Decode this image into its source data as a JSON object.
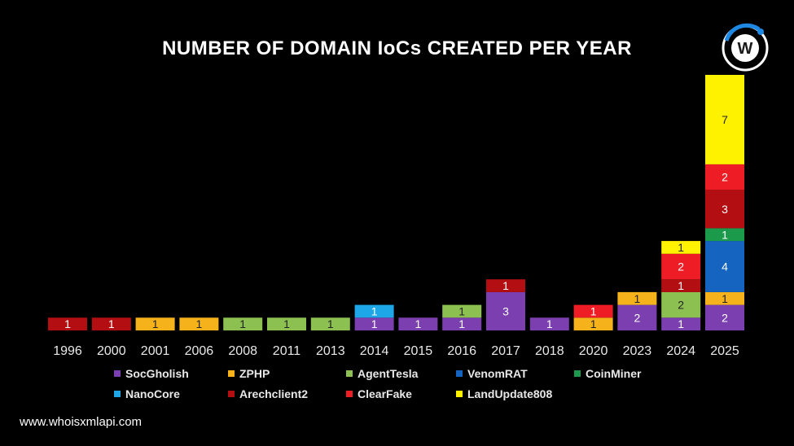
{
  "title": "NUMBER OF DOMAIN IoCs CREATED PER YEAR",
  "footer": "www.whoisxmlapi.com",
  "logo": {
    "icon": "whoisxmlapi-logo-icon",
    "letter": "W"
  },
  "chart_data": {
    "type": "bar",
    "stacked": true,
    "title": "NUMBER OF DOMAIN IoCs CREATED PER YEAR",
    "categories": [
      "1996",
      "2000",
      "2001",
      "2006",
      "2008",
      "2011",
      "2013",
      "2014",
      "2015",
      "2016",
      "2017",
      "2018",
      "2020",
      "2023",
      "2024",
      "2025"
    ],
    "series": [
      {
        "name": "SocGholish",
        "color": "#7b3fb0",
        "values": [
          0,
          0,
          0,
          0,
          0,
          0,
          0,
          1,
          1,
          1,
          3,
          1,
          0,
          2,
          1,
          2
        ]
      },
      {
        "name": "ZPHP",
        "color": "#f5b21a",
        "values": [
          0,
          0,
          1,
          1,
          0,
          0,
          0,
          0,
          0,
          0,
          0,
          0,
          1,
          1,
          0,
          1
        ]
      },
      {
        "name": "AgentTesla",
        "color": "#8cc152",
        "values": [
          0,
          0,
          0,
          0,
          1,
          1,
          1,
          0,
          0,
          1,
          0,
          0,
          0,
          0,
          2,
          0
        ]
      },
      {
        "name": "VenomRAT",
        "color": "#1565c0",
        "values": [
          0,
          0,
          0,
          0,
          0,
          0,
          0,
          0,
          0,
          0,
          0,
          0,
          0,
          0,
          0,
          4
        ]
      },
      {
        "name": "CoinMiner",
        "color": "#1a9a4a",
        "values": [
          0,
          0,
          0,
          0,
          0,
          0,
          0,
          0,
          0,
          0,
          0,
          0,
          0,
          0,
          0,
          1
        ]
      },
      {
        "name": "NanoCore",
        "color": "#1ea7e8",
        "values": [
          0,
          0,
          0,
          0,
          0,
          0,
          0,
          1,
          0,
          0,
          0,
          0,
          0,
          0,
          0,
          0
        ]
      },
      {
        "name": "Arechclient2",
        "color": "#b30f12",
        "values": [
          1,
          1,
          0,
          0,
          0,
          0,
          0,
          0,
          0,
          0,
          1,
          0,
          0,
          0,
          1,
          3
        ]
      },
      {
        "name": "ClearFake",
        "color": "#ee1c24",
        "values": [
          0,
          0,
          0,
          0,
          0,
          0,
          0,
          0,
          0,
          0,
          0,
          0,
          1,
          0,
          2,
          2
        ]
      },
      {
        "name": "LandUpdate808",
        "color": "#fff200",
        "values": [
          0,
          0,
          0,
          0,
          0,
          0,
          0,
          0,
          0,
          0,
          0,
          0,
          0,
          0,
          1,
          7
        ]
      }
    ],
    "ylim": [
      0,
      20
    ],
    "grid": false,
    "legend_position": "bottom"
  },
  "legend": [
    {
      "label": "SocGholish",
      "color": "#7b3fb0"
    },
    {
      "label": "ZPHP",
      "color": "#f5b21a"
    },
    {
      "label": "AgentTesla",
      "color": "#8cc152"
    },
    {
      "label": "VenomRAT",
      "color": "#1565c0"
    },
    {
      "label": "CoinMiner",
      "color": "#1a9a4a"
    },
    {
      "label": "NanoCore",
      "color": "#1ea7e8"
    },
    {
      "label": "Arechclient2",
      "color": "#b30f12"
    },
    {
      "label": "ClearFake",
      "color": "#ee1c24"
    },
    {
      "label": "LandUpdate808",
      "color": "#fff200"
    }
  ]
}
